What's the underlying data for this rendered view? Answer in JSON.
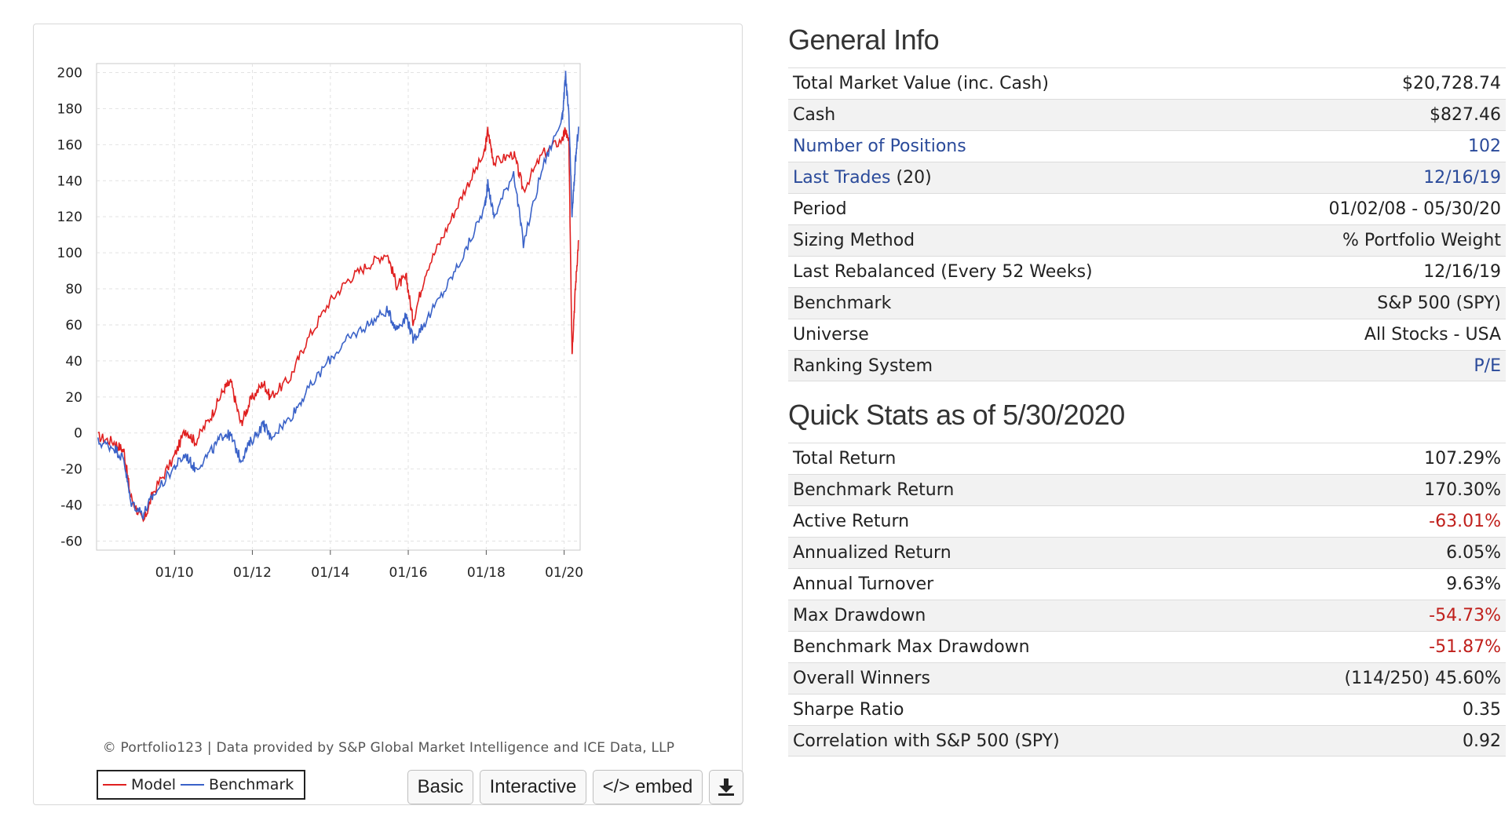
{
  "chart_data": {
    "type": "line",
    "x_tick_labels": [
      "01/10",
      "01/12",
      "01/14",
      "01/16",
      "01/18",
      "01/20"
    ],
    "y_ticks": [
      200,
      180,
      160,
      140,
      120,
      100,
      80,
      60,
      40,
      20,
      0,
      -20,
      -40,
      -60
    ],
    "ylim": [
      -65,
      205
    ],
    "xlim": [
      "2008-01-02",
      "2020-05-30"
    ],
    "grid": true,
    "legend_position": "bottom-left",
    "series": [
      {
        "name": "Model",
        "color": "#e02020",
        "points": [
          [
            "2008-01",
            -2
          ],
          [
            "2008-06",
            -5
          ],
          [
            "2008-09",
            -10
          ],
          [
            "2008-11",
            -35
          ],
          [
            "2009-03",
            -50
          ],
          [
            "2009-06",
            -33
          ],
          [
            "2009-12",
            -15
          ],
          [
            "2010-04",
            2
          ],
          [
            "2010-07",
            -5
          ],
          [
            "2010-12",
            10
          ],
          [
            "2011-04",
            25
          ],
          [
            "2011-06",
            28
          ],
          [
            "2011-09",
            5
          ],
          [
            "2011-12",
            18
          ],
          [
            "2012-04",
            28
          ],
          [
            "2012-06",
            20
          ],
          [
            "2012-12",
            30
          ],
          [
            "2013-05",
            50
          ],
          [
            "2013-12",
            72
          ],
          [
            "2014-06",
            85
          ],
          [
            "2014-12",
            93
          ],
          [
            "2015-06",
            100
          ],
          [
            "2015-09",
            82
          ],
          [
            "2015-12",
            86
          ],
          [
            "2016-02",
            62
          ],
          [
            "2016-06",
            90
          ],
          [
            "2016-12",
            112
          ],
          [
            "2017-06",
            135
          ],
          [
            "2017-12",
            155
          ],
          [
            "2018-01",
            168
          ],
          [
            "2018-03",
            150
          ],
          [
            "2018-09",
            155
          ],
          [
            "2018-12",
            135
          ],
          [
            "2019-06",
            155
          ],
          [
            "2019-12",
            163
          ],
          [
            "2020-01",
            168
          ],
          [
            "2020-02",
            160
          ],
          [
            "2020-03",
            45
          ],
          [
            "2020-04",
            80
          ],
          [
            "2020-05",
            107
          ]
        ]
      },
      {
        "name": "Benchmark",
        "color": "#3a62c8",
        "points": [
          [
            "2008-01",
            -5
          ],
          [
            "2008-06",
            -8
          ],
          [
            "2008-09",
            -15
          ],
          [
            "2008-11",
            -38
          ],
          [
            "2009-03",
            -45
          ],
          [
            "2009-06",
            -35
          ],
          [
            "2009-12",
            -20
          ],
          [
            "2010-04",
            -12
          ],
          [
            "2010-07",
            -20
          ],
          [
            "2010-12",
            -10
          ],
          [
            "2011-04",
            0
          ],
          [
            "2011-06",
            -2
          ],
          [
            "2011-09",
            -15
          ],
          [
            "2011-12",
            -5
          ],
          [
            "2012-04",
            5
          ],
          [
            "2012-06",
            -2
          ],
          [
            "2012-12",
            8
          ],
          [
            "2013-05",
            22
          ],
          [
            "2013-12",
            40
          ],
          [
            "2014-06",
            52
          ],
          [
            "2014-12",
            60
          ],
          [
            "2015-06",
            68
          ],
          [
            "2015-09",
            58
          ],
          [
            "2015-12",
            65
          ],
          [
            "2016-02",
            52
          ],
          [
            "2016-06",
            62
          ],
          [
            "2016-12",
            80
          ],
          [
            "2017-06",
            100
          ],
          [
            "2017-12",
            125
          ],
          [
            "2018-01",
            138
          ],
          [
            "2018-03",
            120
          ],
          [
            "2018-09",
            145
          ],
          [
            "2018-12",
            105
          ],
          [
            "2019-06",
            148
          ],
          [
            "2019-12",
            175
          ],
          [
            "2020-01",
            198
          ],
          [
            "2020-02",
            175
          ],
          [
            "2020-03",
            120
          ],
          [
            "2020-04",
            150
          ],
          [
            "2020-05",
            170
          ]
        ]
      }
    ]
  },
  "chart_panel": {
    "credit": "© Portfolio123 | Data provided by S&P Global Market Intelligence and ICE Data, LLP",
    "legend": {
      "model_label": "Model",
      "benchmark_label": "Benchmark"
    },
    "buttons": {
      "basic": "Basic",
      "interactive": "Interactive",
      "embed": "</> embed",
      "download_icon": "download-icon"
    }
  },
  "general_info": {
    "title": "General Info",
    "rows": [
      {
        "label": "Total Market Value (inc. Cash)",
        "value": "$20,728.74"
      },
      {
        "label": "Cash",
        "value": "$827.46"
      },
      {
        "label": "Number of Positions",
        "value": "102",
        "link": true
      },
      {
        "label": "Last Trades",
        "label_suffix": " (20)",
        "value": "12/16/19",
        "link": true
      },
      {
        "label": "Period",
        "value": "01/02/08 - 05/30/20"
      },
      {
        "label": "Sizing Method",
        "value": "% Portfolio Weight"
      },
      {
        "label": "Last Rebalanced (Every 52 Weeks)",
        "value": "12/16/19"
      },
      {
        "label": "Benchmark",
        "value": "S&P 500 (SPY)"
      },
      {
        "label": "Universe",
        "value": "All Stocks - USA"
      },
      {
        "label": "Ranking System",
        "value": "P/E",
        "value_link": true
      }
    ]
  },
  "quick_stats": {
    "title": "Quick Stats as of 5/30/2020",
    "rows": [
      {
        "label": "Total Return",
        "value": "107.29%"
      },
      {
        "label": "Benchmark Return",
        "value": "170.30%"
      },
      {
        "label": "Active Return",
        "value": "-63.01%",
        "negative": true
      },
      {
        "label": "Annualized Return",
        "value": "6.05%"
      },
      {
        "label": "Annual Turnover",
        "value": "9.63%"
      },
      {
        "label": "Max Drawdown",
        "value": "-54.73%",
        "negative": true
      },
      {
        "label": "Benchmark Max Drawdown",
        "value": "-51.87%",
        "negative": true
      },
      {
        "label": "Overall Winners",
        "value": "(114/250) 45.60%"
      },
      {
        "label": "Sharpe Ratio",
        "value": "0.35"
      },
      {
        "label": "Correlation with S&P 500 (SPY)",
        "value": "0.92"
      }
    ]
  },
  "colors": {
    "link": "#2a4a9a",
    "negative": "#c0201c",
    "row_alt": "#f2f2f2"
  }
}
